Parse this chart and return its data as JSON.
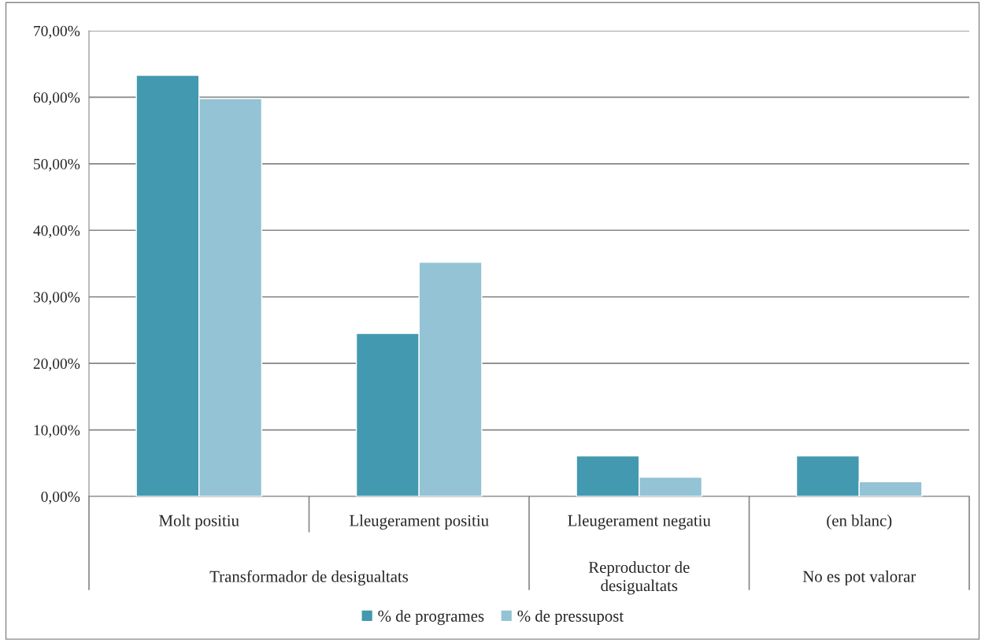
{
  "chart_data": {
    "type": "bar",
    "categories": [
      "Molt positiu",
      "Lleugerament positiu",
      "Lleugerament negatiu",
      "(en blanc)"
    ],
    "series": [
      {
        "name": "% de programes",
        "color": "#4399b0",
        "values": [
          63.3,
          24.5,
          6.1,
          6.1
        ]
      },
      {
        "name": "% de pressupost",
        "color": "#93c3d4",
        "values": [
          59.8,
          35.2,
          2.9,
          2.2
        ]
      }
    ],
    "annotations": [
      "Transformador de desigualtats",
      "Reproductor de\ndesigualtats",
      "No es pot valorar"
    ],
    "ylim": [
      0,
      70
    ],
    "yticks": [
      {
        "value": 0,
        "label": "0,00%"
      },
      {
        "value": 10,
        "label": "10,00%"
      },
      {
        "value": 20,
        "label": "20,00%"
      },
      {
        "value": 30,
        "label": "30,00%"
      },
      {
        "value": 40,
        "label": "40,00%"
      },
      {
        "value": 50,
        "label": "50,00%"
      },
      {
        "value": 60,
        "label": "60,00%"
      },
      {
        "value": 70,
        "label": "70,00%"
      }
    ],
    "grid": "y",
    "legend": "bottom"
  }
}
